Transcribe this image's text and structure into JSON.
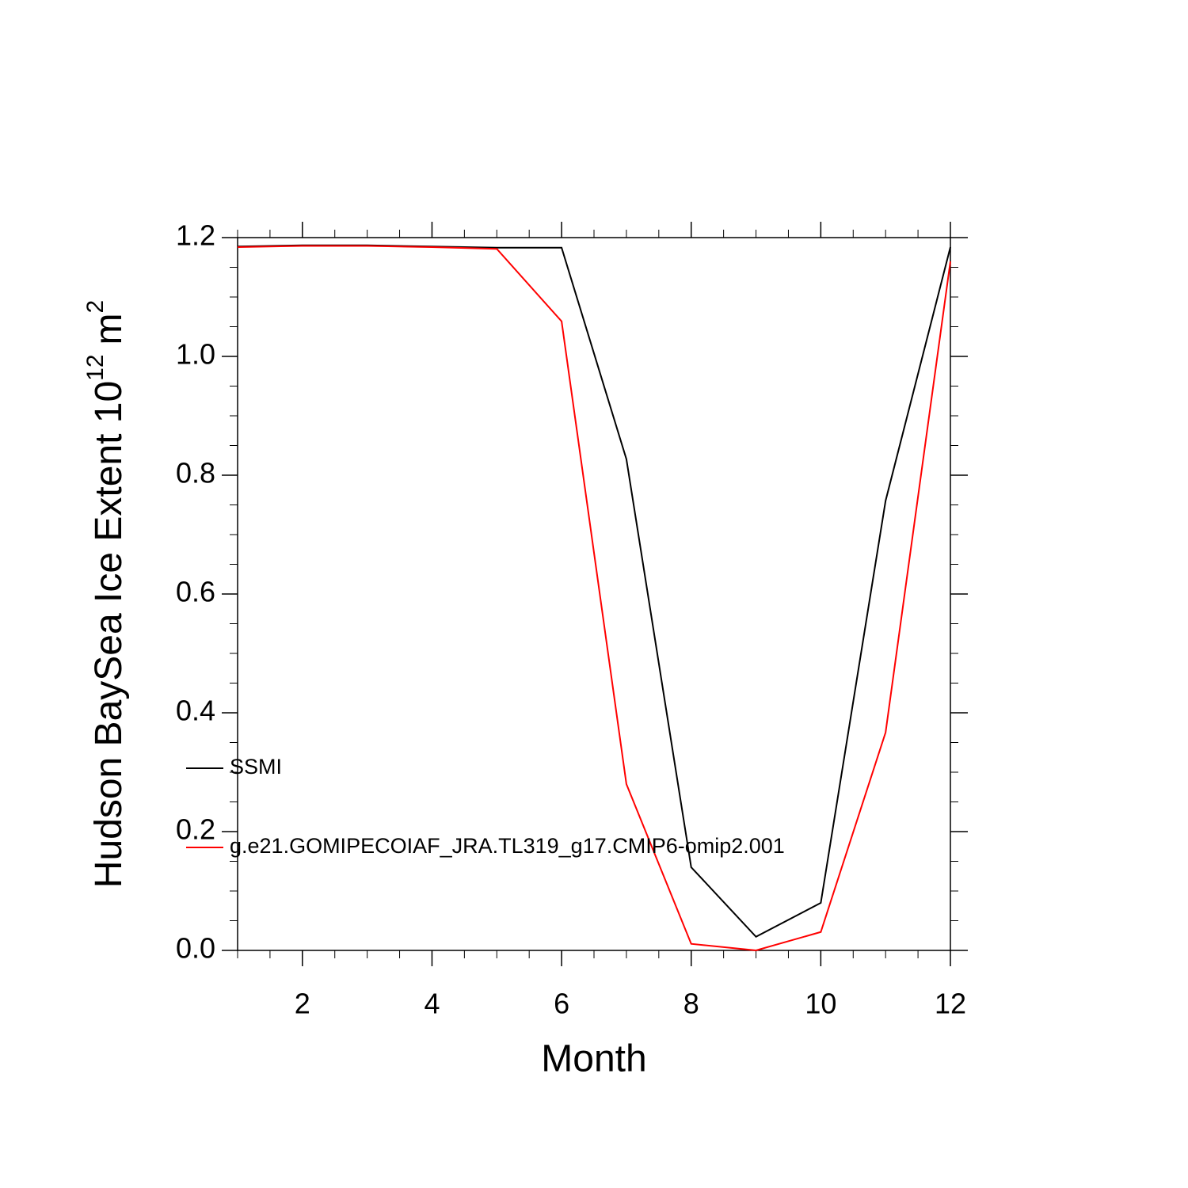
{
  "chart_data": {
    "type": "line",
    "xlabel": "Month",
    "ylabel": [
      "Hudson BaySea Ice Extent 10",
      "12",
      "m",
      "2"
    ],
    "x": [
      1,
      2,
      3,
      4,
      5,
      6,
      7,
      8,
      9,
      10,
      11,
      12
    ],
    "series": [
      {
        "name": "SSMI",
        "color": "#000000",
        "values": [
          1.185,
          1.187,
          1.187,
          1.185,
          1.183,
          1.183,
          0.827,
          0.14,
          0.023,
          0.08,
          0.757,
          1.184
        ]
      },
      {
        "name": "g.e21.GOMIPECOIAF_JRA.TL319_g17.CMIP6-omip2.001",
        "color": "#ff0000",
        "values": [
          1.184,
          1.186,
          1.186,
          1.184,
          1.181,
          1.059,
          0.28,
          0.011,
          0.0,
          0.031,
          0.367,
          1.16
        ]
      }
    ],
    "xlim": [
      1,
      12
    ],
    "xticks": [
      2,
      4,
      6,
      8,
      10,
      12
    ],
    "ylim": [
      0,
      1.2
    ],
    "yticks": [
      {
        "value": 0,
        "label": "0.0"
      },
      {
        "value": 0.2,
        "label": "0.2"
      },
      {
        "value": 0.4,
        "label": "0.4"
      },
      {
        "value": 0.6,
        "label": "0.6"
      },
      {
        "value": 0.8,
        "label": "0.8"
      },
      {
        "value": 1.0,
        "label": "1.0"
      },
      {
        "value": 1.2,
        "label": "1.2"
      }
    ]
  }
}
